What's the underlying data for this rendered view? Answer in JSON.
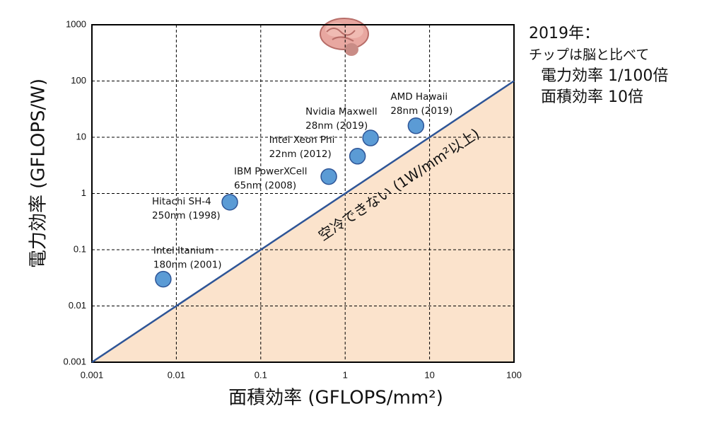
{
  "chart_data": {
    "type": "scatter",
    "xlabel": "面積効率 (GFLOPS/mm²)",
    "ylabel": "電力効率 (GFLOPS/W)",
    "log_x": true,
    "log_y": true,
    "grid": true,
    "xlim": [
      0.001,
      100
    ],
    "xticks": [
      0.001,
      0.01,
      0.1,
      1,
      10,
      100
    ],
    "ylim": [
      0.001,
      1000
    ],
    "yticks": [
      0.001,
      0.01,
      0.1,
      1,
      10,
      100,
      1000
    ],
    "series": [
      {
        "color": "#5b9bd5",
        "labels": [
          "Intel Itanium",
          "Hitachi SH-4",
          "IBM PowerXCell",
          "Intel Xeon Phi",
          "Nvidia Maxwell",
          "AMD Hawaii"
        ],
        "details": [
          "180nm (2001)",
          "250nm (1998)",
          "65nm (2008)",
          "22nm (2012)",
          "28nm (2019)",
          "28nm (2019)"
        ],
        "x": [
          0.007,
          0.043,
          0.64,
          1.4,
          2,
          6.9
        ],
        "y": [
          0.03,
          0.7,
          2,
          4.6,
          9.7,
          16
        ]
      }
    ],
    "boundary": {
      "label": "空冷できない (1W/mm²以上)",
      "color": "#2e5597",
      "fill": "#fbe3cc",
      "x": [
        0.001,
        100
      ],
      "y": [
        0.001,
        100
      ]
    },
    "annotations": [
      "2019年：",
      "チップは脳と比べて",
      "電力効率 1/100倍",
      "面積効率 10倍"
    ]
  }
}
